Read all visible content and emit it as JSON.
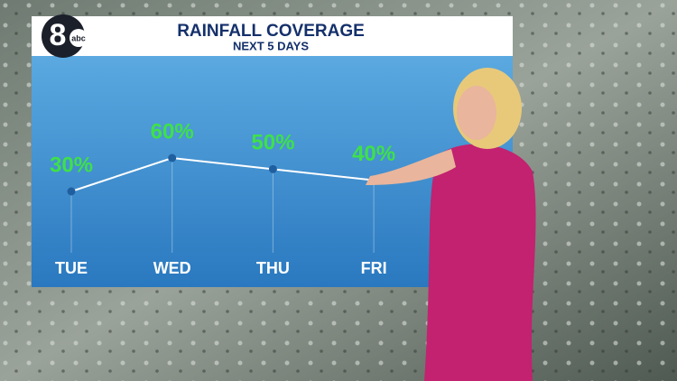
{
  "logo": {
    "number": "8",
    "network": "abc"
  },
  "chart_data": {
    "type": "line",
    "title": "RAINFALL COVERAGE",
    "subtitle": "NEXT 5 DAYS",
    "categories": [
      "TUE",
      "WED",
      "THU",
      "FRI"
    ],
    "values": [
      30,
      60,
      50,
      40
    ],
    "value_labels": [
      "30%",
      "60%",
      "50%",
      "40%"
    ],
    "color": "#ffffff",
    "label_color": "#3fe04a"
  }
}
